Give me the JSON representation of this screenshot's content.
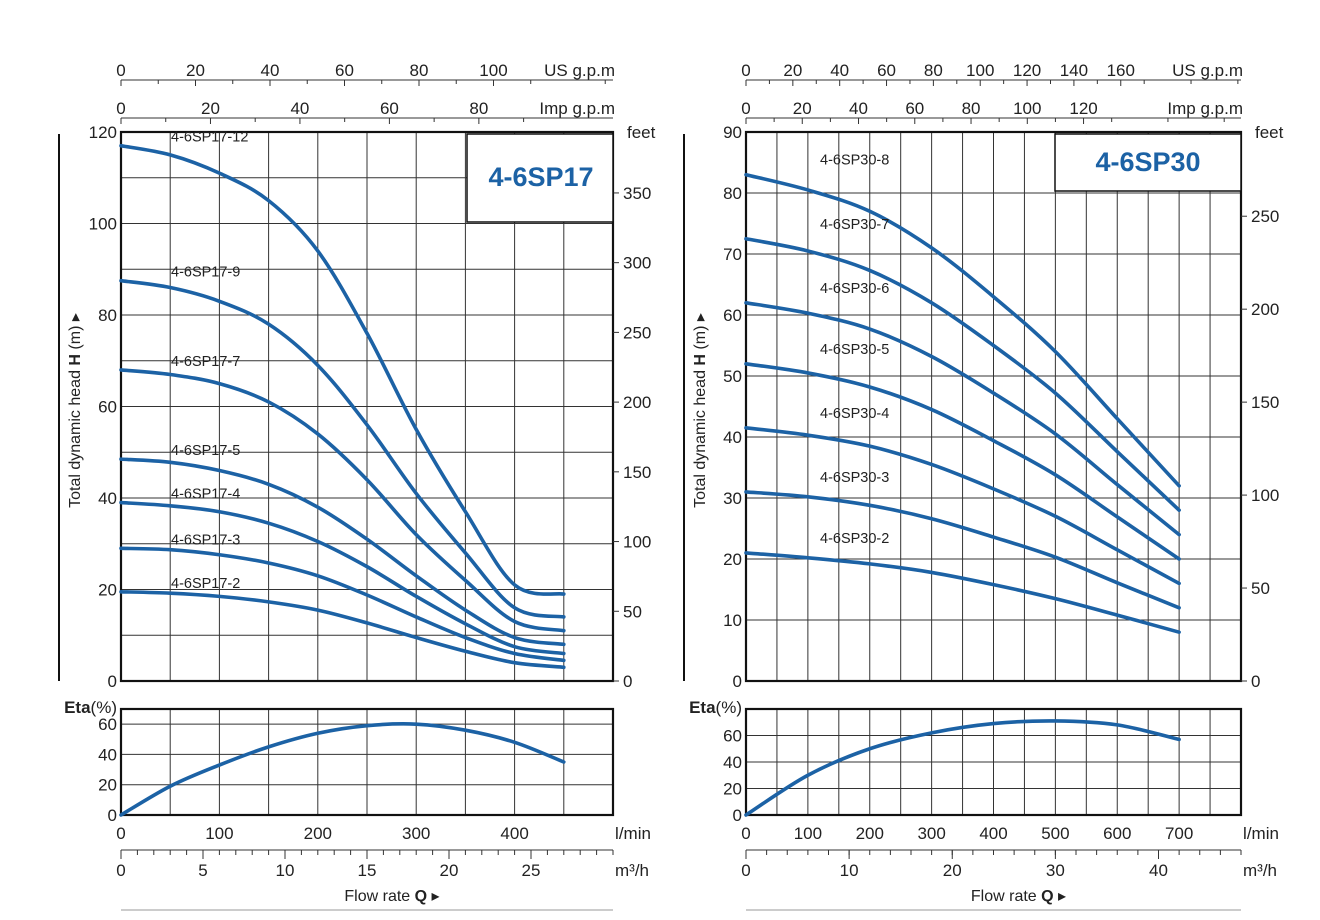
{
  "colors": {
    "curve": "#1c62a5",
    "grid": "#333333",
    "title": "#1c62a5"
  },
  "chart_data": [
    {
      "type": "line",
      "title": "4-6SP17",
      "ylabel_prefix": "Total dynamic head ",
      "ylabel_bold": "H",
      "ylabel_suffix": " (m)",
      "ylabel_right": "feet",
      "xlabel_prefix": "Flow rate ",
      "xlabel_bold": "Q",
      "x_unit_lmin": "l/min",
      "x_unit_m3h": "m³/h",
      "top_us_label": "US g.p.m",
      "top_imp_label": "Imp g.p.m",
      "xlim_lmin": [
        0,
        500
      ],
      "ylim_m": [
        0,
        120
      ],
      "ylim_ft": [
        0,
        393.7
      ],
      "ticks_lmin": [
        "0",
        "100",
        "200",
        "300",
        "400"
      ],
      "ticks_m3h": [
        "0",
        "5",
        "10",
        "15",
        "20",
        "25"
      ],
      "ticks_us": [
        "0",
        "20",
        "40",
        "60",
        "80",
        "100"
      ],
      "ticks_imp": [
        "0",
        "20",
        "40",
        "60",
        "80"
      ],
      "ticks_m": [
        "0",
        "20",
        "40",
        "60",
        "80",
        "100",
        "120"
      ],
      "ticks_ft": [
        "0",
        "50",
        "100",
        "150",
        "200",
        "250",
        "300",
        "350"
      ],
      "grid": true,
      "series": [
        {
          "name": "4-6SP17-12",
          "x": [
            0,
            50,
            100,
            150,
            200,
            250,
            300,
            350,
            400,
            450
          ],
          "y": [
            117,
            115,
            111,
            105,
            94,
            76,
            55,
            37,
            21,
            19
          ]
        },
        {
          "name": "4-6SP17-9",
          "x": [
            0,
            50,
            100,
            150,
            200,
            250,
            300,
            350,
            400,
            450
          ],
          "y": [
            87.5,
            86,
            83,
            78,
            69,
            56,
            41,
            28,
            16,
            14
          ]
        },
        {
          "name": "4-6SP17-7",
          "x": [
            0,
            50,
            100,
            150,
            200,
            250,
            300,
            350,
            400,
            450
          ],
          "y": [
            68,
            67,
            65,
            61,
            54,
            44,
            32,
            22,
            13,
            11
          ]
        },
        {
          "name": "4-6SP17-5",
          "x": [
            0,
            50,
            100,
            150,
            200,
            250,
            300,
            350,
            400,
            450
          ],
          "y": [
            48.5,
            47.8,
            46,
            43,
            38,
            31,
            23,
            15.5,
            9.5,
            8
          ]
        },
        {
          "name": "4-6SP17-4",
          "x": [
            0,
            50,
            100,
            150,
            200,
            250,
            300,
            350,
            400,
            450
          ],
          "y": [
            39,
            38.3,
            37,
            34.5,
            30.5,
            25,
            18.5,
            12.5,
            7.5,
            6
          ]
        },
        {
          "name": "4-6SP17-3",
          "x": [
            0,
            50,
            100,
            150,
            200,
            250,
            300,
            350,
            400,
            450
          ],
          "y": [
            29,
            28.7,
            27.6,
            25.8,
            23,
            18.8,
            14,
            9.5,
            6,
            4.5
          ]
        },
        {
          "name": "4-6SP17-2",
          "x": [
            0,
            50,
            100,
            150,
            200,
            250,
            300,
            350,
            400,
            450
          ],
          "y": [
            19.5,
            19.2,
            18.5,
            17.3,
            15.5,
            12.7,
            9.5,
            6.5,
            4,
            3
          ]
        }
      ],
      "eta": {
        "label_bold": "Eta",
        "label_unit": "(%)",
        "ticks": [
          "0",
          "20",
          "40",
          "60"
        ],
        "ylim": [
          0,
          70
        ],
        "x": [
          0,
          50,
          100,
          150,
          200,
          250,
          300,
          350,
          400,
          450
        ],
        "y": [
          0,
          19,
          33,
          45,
          54,
          59,
          60,
          56,
          48,
          35
        ]
      }
    },
    {
      "type": "line",
      "title": "4-6SP30",
      "ylabel_prefix": "Total dynamic head ",
      "ylabel_bold": "H",
      "ylabel_suffix": " (m)",
      "ylabel_right": "feet",
      "xlabel_prefix": "Flow rate ",
      "xlabel_bold": "Q",
      "x_unit_lmin": "l/min",
      "x_unit_m3h": "m³/h",
      "top_us_label": "US g.p.m",
      "top_imp_label": "Imp g.p.m",
      "xlim_lmin": [
        0,
        800
      ],
      "ylim_m": [
        0,
        90
      ],
      "ylim_ft": [
        0,
        295.3
      ],
      "ticks_lmin": [
        "0",
        "100",
        "200",
        "300",
        "400",
        "500",
        "600",
        "700"
      ],
      "ticks_m3h": [
        "0",
        "10",
        "20",
        "30",
        "40"
      ],
      "ticks_us": [
        "0",
        "20",
        "40",
        "60",
        "80",
        "100",
        "120",
        "140",
        "160"
      ],
      "ticks_imp": [
        "0",
        "20",
        "40",
        "60",
        "80",
        "100",
        "120"
      ],
      "ticks_m": [
        "0",
        "10",
        "20",
        "30",
        "40",
        "50",
        "60",
        "70",
        "80",
        "90"
      ],
      "ticks_ft": [
        "0",
        "50",
        "100",
        "150",
        "200",
        "250"
      ],
      "grid": true,
      "series": [
        {
          "name": "4-6SP30-8",
          "x": [
            0,
            100,
            200,
            300,
            400,
            500,
            600,
            700
          ],
          "y": [
            83,
            80.5,
            77,
            71,
            63,
            54,
            43,
            32
          ]
        },
        {
          "name": "4-6SP30-7",
          "x": [
            0,
            100,
            200,
            300,
            400,
            500,
            600,
            700
          ],
          "y": [
            72.5,
            70.5,
            67.3,
            62,
            55,
            47.2,
            37.6,
            28
          ]
        },
        {
          "name": "4-6SP30-6",
          "x": [
            0,
            100,
            200,
            300,
            400,
            500,
            600,
            700
          ],
          "y": [
            62,
            60.3,
            57.7,
            53.2,
            47.2,
            40.5,
            32.2,
            24
          ]
        },
        {
          "name": "4-6SP30-5",
          "x": [
            0,
            100,
            200,
            300,
            400,
            500,
            600,
            700
          ],
          "y": [
            52,
            50.5,
            48.2,
            44.5,
            39.4,
            33.8,
            26.9,
            20
          ]
        },
        {
          "name": "4-6SP30-4",
          "x": [
            0,
            100,
            200,
            300,
            400,
            500,
            600,
            700
          ],
          "y": [
            41.5,
            40.3,
            38.5,
            35.5,
            31.5,
            27,
            21.5,
            16
          ]
        },
        {
          "name": "4-6SP30-3",
          "x": [
            0,
            100,
            200,
            300,
            400,
            500,
            600,
            700
          ],
          "y": [
            31,
            30.2,
            28.8,
            26.6,
            23.6,
            20.3,
            16.1,
            12
          ]
        },
        {
          "name": "4-6SP30-2",
          "x": [
            0,
            100,
            200,
            300,
            400,
            500,
            600,
            700
          ],
          "y": [
            21,
            20.2,
            19.2,
            17.8,
            15.8,
            13.5,
            10.8,
            8
          ]
        }
      ],
      "eta": {
        "label_bold": "Eta",
        "label_unit": "(%)",
        "ticks": [
          "0",
          "20",
          "40",
          "60"
        ],
        "ylim": [
          0,
          80
        ],
        "x": [
          0,
          100,
          200,
          300,
          400,
          500,
          600,
          700
        ],
        "y": [
          0,
          30,
          50,
          62,
          69,
          71,
          68,
          57
        ]
      }
    }
  ]
}
